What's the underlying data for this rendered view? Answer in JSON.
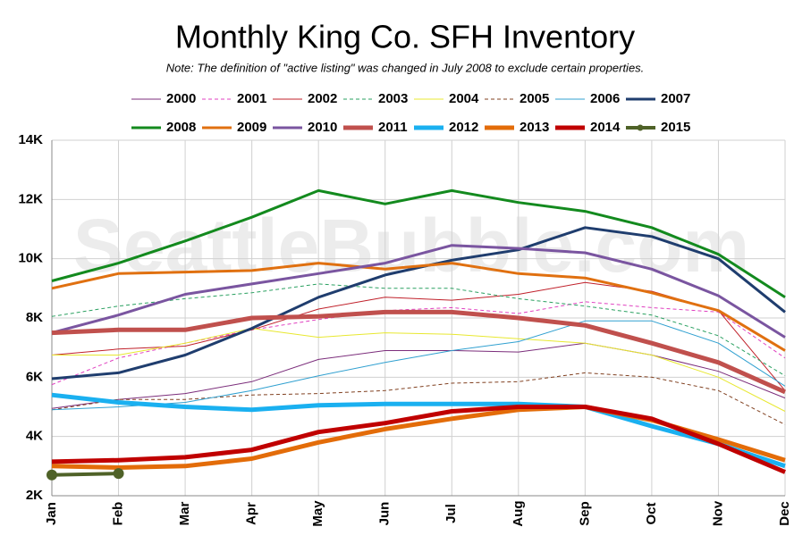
{
  "chart_data": {
    "type": "line",
    "title": "Monthly King Co. SFH Inventory",
    "subtitle": "Note: The definition of \"active listing\" was changed in July 2008 to exclude certain properties.",
    "watermark": "SeattleBubble.com",
    "categories": [
      "Jan",
      "Feb",
      "Mar",
      "Apr",
      "May",
      "Jun",
      "Jul",
      "Aug",
      "Sep",
      "Oct",
      "Nov",
      "Dec"
    ],
    "ylim": [
      2000,
      14000
    ],
    "yticks": [
      {
        "value": 2000,
        "label": "2K"
      },
      {
        "value": 4000,
        "label": "4K"
      },
      {
        "value": 6000,
        "label": "6K"
      },
      {
        "value": 8000,
        "label": "8K"
      },
      {
        "value": 10000,
        "label": "10K"
      },
      {
        "value": 12000,
        "label": "12K"
      },
      {
        "value": 14000,
        "label": "14K"
      }
    ],
    "grid": true,
    "legend": "top",
    "series": [
      {
        "name": "2000",
        "color": "#7b2d7b",
        "width": 1,
        "dash": false,
        "values": [
          4950,
          5250,
          5450,
          5850,
          6600,
          6900,
          6900,
          6850,
          7150,
          6750,
          6200,
          5300
        ]
      },
      {
        "name": "2001",
        "color": "#e040c0",
        "width": 1,
        "dash": true,
        "values": [
          5750,
          6650,
          7150,
          7600,
          7950,
          8250,
          8350,
          8150,
          8550,
          8350,
          8200,
          6650
        ]
      },
      {
        "name": "2002",
        "color": "#c0202a",
        "width": 1,
        "dash": false,
        "values": [
          6750,
          6950,
          7050,
          7600,
          8300,
          8700,
          8600,
          8800,
          9200,
          8900,
          8250,
          5550
        ]
      },
      {
        "name": "2003",
        "color": "#2aa060",
        "width": 1,
        "dash": true,
        "values": [
          8050,
          8400,
          8650,
          8850,
          9150,
          9000,
          9000,
          8650,
          8400,
          8100,
          7400,
          6050
        ]
      },
      {
        "name": "2004",
        "color": "#e8e830",
        "width": 1,
        "dash": false,
        "values": [
          6750,
          6750,
          7150,
          7650,
          7350,
          7500,
          7450,
          7300,
          7150,
          6750,
          6000,
          4850
        ]
      },
      {
        "name": "2005",
        "color": "#804020",
        "width": 1,
        "dash": true,
        "values": [
          4900,
          5250,
          5250,
          5400,
          5450,
          5550,
          5800,
          5850,
          6150,
          6000,
          5550,
          4400
        ]
      },
      {
        "name": "2006",
        "color": "#30a0d0",
        "width": 1,
        "dash": false,
        "values": [
          4900,
          5000,
          5150,
          5550,
          6050,
          6500,
          6900,
          7200,
          7900,
          7900,
          7150,
          5700
        ]
      },
      {
        "name": "2007",
        "color": "#1f3d6e",
        "width": 3,
        "dash": false,
        "values": [
          5950,
          6150,
          6750,
          7650,
          8700,
          9450,
          9950,
          10300,
          11050,
          10750,
          10000,
          8200
        ]
      },
      {
        "name": "2008",
        "color": "#138a1e",
        "width": 3,
        "dash": false,
        "values": [
          9250,
          9850,
          10600,
          11400,
          12300,
          11850,
          12300,
          11900,
          11600,
          11050,
          10150,
          8700
        ]
      },
      {
        "name": "2009",
        "color": "#e07010",
        "width": 3,
        "dash": false,
        "values": [
          9000,
          9500,
          9550,
          9600,
          9850,
          9650,
          9850,
          9500,
          9350,
          8850,
          8250,
          6900
        ]
      },
      {
        "name": "2010",
        "color": "#7a55a0",
        "width": 3,
        "dash": false,
        "values": [
          7500,
          8100,
          8800,
          9150,
          9500,
          9850,
          10450,
          10350,
          10200,
          9650,
          8750,
          7350
        ]
      },
      {
        "name": "2011",
        "color": "#c0504d",
        "width": 5,
        "dash": false,
        "values": [
          7500,
          7600,
          7600,
          8000,
          8050,
          8200,
          8200,
          8000,
          7750,
          7150,
          6500,
          5500
        ]
      },
      {
        "name": "2012",
        "color": "#1ab0f0",
        "width": 5,
        "dash": false,
        "values": [
          5400,
          5150,
          5000,
          4900,
          5050,
          5100,
          5100,
          5100,
          5000,
          4350,
          3750,
          3000
        ]
      },
      {
        "name": "2013",
        "color": "#e36c09",
        "width": 5,
        "dash": false,
        "values": [
          3000,
          2950,
          3000,
          3250,
          3800,
          4250,
          4600,
          4900,
          5000,
          4550,
          3900,
          3200
        ]
      },
      {
        "name": "2014",
        "color": "#c00000",
        "width": 5,
        "dash": false,
        "values": [
          3150,
          3200,
          3300,
          3550,
          4150,
          4450,
          4850,
          5000,
          5000,
          4600,
          3750,
          2800
        ]
      },
      {
        "name": "2015",
        "color": "#4f6228",
        "width": 4,
        "dash": true,
        "markers": true,
        "values": [
          2700,
          2750,
          null,
          null,
          null,
          null,
          null,
          null,
          null,
          null,
          null,
          null
        ]
      }
    ]
  }
}
